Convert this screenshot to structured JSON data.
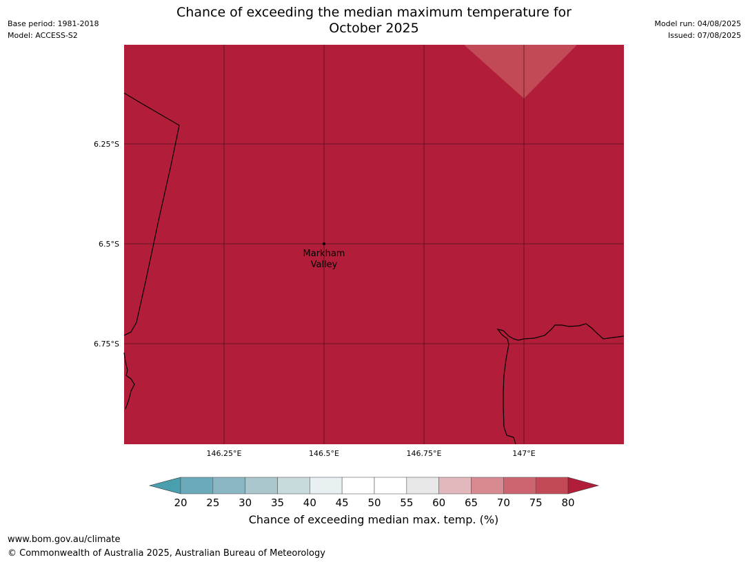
{
  "header": {
    "base_period": "Base period: 1981-2018",
    "model": "Model: ACCESS-S2",
    "model_run": "Model run: 04/08/2025",
    "issued": "Issued: 07/08/2025"
  },
  "title": {
    "line1": "Chance of exceeding the median maximum temperature for",
    "line2": "October 2025"
  },
  "map": {
    "lat_labels": [
      "6.25°S",
      "6.5°S",
      "6.75°S"
    ],
    "lon_labels": [
      "146.25°E",
      "146.5°E",
      "146.75°E",
      "147°E"
    ],
    "place_name_line1": "Markham",
    "place_name_line2": "Valley",
    "background_color": "#b21e3a",
    "highlight_color": "#c24a57"
  },
  "colorbar": {
    "ticks": [
      "20",
      "25",
      "30",
      "35",
      "40",
      "45",
      "50",
      "55",
      "60",
      "65",
      "70",
      "75",
      "80"
    ],
    "colors": [
      "#6aaabb",
      "#8ab6c4",
      "#a9c6cd",
      "#c9dadd",
      "#e9f0f2",
      "#ffffff",
      "#ffffff",
      "#e8e8e8",
      "#e3b8bc",
      "#d88a92",
      "#cc6570",
      "#c24a57"
    ],
    "under_color": "#4a9fae",
    "over_color": "#b21e3a",
    "label": "Chance of exceeding median max. temp. (%)"
  },
  "footer": {
    "url": "www.bom.gov.au/climate",
    "copyright": "© Commonwealth of Australia 2025, Australian Bureau of Meteorology"
  }
}
